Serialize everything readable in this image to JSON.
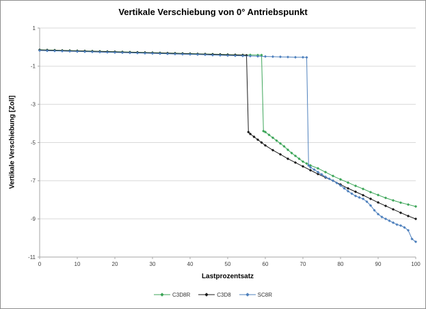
{
  "chart_data": {
    "type": "line",
    "title": "Vertikale Verschiebung von 0° Antriebspunkt",
    "xlabel": "Lastprozentsatz",
    "ylabel": "Vertikale Verschiebung [Zoll]",
    "xlim": [
      0,
      100
    ],
    "ylim": [
      -11,
      1
    ],
    "x_ticks": [
      0,
      10,
      20,
      30,
      40,
      50,
      60,
      70,
      80,
      90,
      100
    ],
    "y_ticks": [
      1,
      -1,
      -3,
      -5,
      -7,
      -9,
      -11
    ],
    "grid": "horizontal",
    "legend_position": "bottom",
    "colors": {
      "grid": "#d9d9d9",
      "axis": "#a6a6a6",
      "tick_label": "#404040",
      "frame_border": "#8c8c8c",
      "background": "#ffffff"
    },
    "series": [
      {
        "name": "C3D8R",
        "color": "#3ca558",
        "points": [
          [
            0,
            -0.14
          ],
          [
            2,
            -0.15
          ],
          [
            4,
            -0.16
          ],
          [
            6,
            -0.17
          ],
          [
            8,
            -0.18
          ],
          [
            10,
            -0.19
          ],
          [
            12,
            -0.2
          ],
          [
            14,
            -0.21
          ],
          [
            16,
            -0.22
          ],
          [
            18,
            -0.23
          ],
          [
            20,
            -0.24
          ],
          [
            22,
            -0.25
          ],
          [
            24,
            -0.26
          ],
          [
            26,
            -0.27
          ],
          [
            28,
            -0.28
          ],
          [
            30,
            -0.29
          ],
          [
            32,
            -0.3
          ],
          [
            34,
            -0.31
          ],
          [
            36,
            -0.32
          ],
          [
            38,
            -0.33
          ],
          [
            40,
            -0.34
          ],
          [
            42,
            -0.35
          ],
          [
            44,
            -0.36
          ],
          [
            46,
            -0.37
          ],
          [
            48,
            -0.38
          ],
          [
            50,
            -0.39
          ],
          [
            52,
            -0.4
          ],
          [
            54,
            -0.41
          ],
          [
            56,
            -0.41
          ],
          [
            58,
            -0.42
          ],
          [
            59,
            -0.42
          ],
          [
            59.5,
            -4.4
          ],
          [
            60,
            -4.45
          ],
          [
            61,
            -4.6
          ],
          [
            62,
            -4.75
          ],
          [
            63,
            -4.9
          ],
          [
            64,
            -5.05
          ],
          [
            65,
            -5.2
          ],
          [
            66,
            -5.38
          ],
          [
            67,
            -5.55
          ],
          [
            68,
            -5.7
          ],
          [
            69,
            -5.85
          ],
          [
            70,
            -6.0
          ],
          [
            71,
            -6.1
          ],
          [
            72,
            -6.2
          ],
          [
            74,
            -6.35
          ],
          [
            76,
            -6.55
          ],
          [
            78,
            -6.75
          ],
          [
            80,
            -6.93
          ],
          [
            82,
            -7.1
          ],
          [
            84,
            -7.27
          ],
          [
            86,
            -7.43
          ],
          [
            88,
            -7.6
          ],
          [
            90,
            -7.75
          ],
          [
            92,
            -7.9
          ],
          [
            94,
            -8.03
          ],
          [
            96,
            -8.15
          ],
          [
            98,
            -8.25
          ],
          [
            100,
            -8.35
          ]
        ]
      },
      {
        "name": "C3D8",
        "color": "#1a1a1a",
        "points": [
          [
            0,
            -0.15
          ],
          [
            2,
            -0.16
          ],
          [
            4,
            -0.17
          ],
          [
            6,
            -0.18
          ],
          [
            8,
            -0.19
          ],
          [
            10,
            -0.2
          ],
          [
            12,
            -0.21
          ],
          [
            14,
            -0.22
          ],
          [
            16,
            -0.23
          ],
          [
            18,
            -0.24
          ],
          [
            20,
            -0.25
          ],
          [
            22,
            -0.26
          ],
          [
            24,
            -0.27
          ],
          [
            26,
            -0.28
          ],
          [
            28,
            -0.29
          ],
          [
            30,
            -0.3
          ],
          [
            32,
            -0.31
          ],
          [
            34,
            -0.32
          ],
          [
            36,
            -0.33
          ],
          [
            38,
            -0.34
          ],
          [
            40,
            -0.35
          ],
          [
            42,
            -0.36
          ],
          [
            44,
            -0.37
          ],
          [
            46,
            -0.38
          ],
          [
            48,
            -0.39
          ],
          [
            50,
            -0.4
          ],
          [
            52,
            -0.41
          ],
          [
            54,
            -0.42
          ],
          [
            55,
            -0.43
          ],
          [
            55.5,
            -4.45
          ],
          [
            56,
            -4.55
          ],
          [
            57,
            -4.7
          ],
          [
            58,
            -4.85
          ],
          [
            59,
            -5.0
          ],
          [
            60,
            -5.15
          ],
          [
            62,
            -5.4
          ],
          [
            64,
            -5.62
          ],
          [
            66,
            -5.85
          ],
          [
            68,
            -6.05
          ],
          [
            70,
            -6.25
          ],
          [
            72,
            -6.45
          ],
          [
            74,
            -6.65
          ],
          [
            76,
            -6.83
          ],
          [
            78,
            -7.0
          ],
          [
            80,
            -7.2
          ],
          [
            82,
            -7.4
          ],
          [
            84,
            -7.58
          ],
          [
            86,
            -7.76
          ],
          [
            88,
            -7.95
          ],
          [
            90,
            -8.14
          ],
          [
            92,
            -8.32
          ],
          [
            94,
            -8.5
          ],
          [
            96,
            -8.68
          ],
          [
            98,
            -8.85
          ],
          [
            100,
            -9.0
          ]
        ]
      },
      {
        "name": "SC8R",
        "color": "#4f81bd",
        "points": [
          [
            0,
            -0.18
          ],
          [
            2,
            -0.19
          ],
          [
            4,
            -0.2
          ],
          [
            6,
            -0.21
          ],
          [
            8,
            -0.22
          ],
          [
            10,
            -0.23
          ],
          [
            12,
            -0.24
          ],
          [
            14,
            -0.25
          ],
          [
            16,
            -0.26
          ],
          [
            18,
            -0.27
          ],
          [
            20,
            -0.28
          ],
          [
            22,
            -0.29
          ],
          [
            24,
            -0.3
          ],
          [
            26,
            -0.31
          ],
          [
            28,
            -0.32
          ],
          [
            30,
            -0.33
          ],
          [
            32,
            -0.34
          ],
          [
            34,
            -0.35
          ],
          [
            36,
            -0.36
          ],
          [
            38,
            -0.37
          ],
          [
            40,
            -0.38
          ],
          [
            42,
            -0.39
          ],
          [
            44,
            -0.4
          ],
          [
            46,
            -0.42
          ],
          [
            48,
            -0.43
          ],
          [
            50,
            -0.44
          ],
          [
            52,
            -0.45
          ],
          [
            54,
            -0.46
          ],
          [
            56,
            -0.47
          ],
          [
            58,
            -0.48
          ],
          [
            60,
            -0.49
          ],
          [
            62,
            -0.5
          ],
          [
            64,
            -0.51
          ],
          [
            66,
            -0.52
          ],
          [
            68,
            -0.53
          ],
          [
            70,
            -0.53
          ],
          [
            71,
            -0.54
          ],
          [
            71.5,
            -6.2
          ],
          [
            72,
            -6.3
          ],
          [
            73,
            -6.42
          ],
          [
            74,
            -6.55
          ],
          [
            75,
            -6.67
          ],
          [
            76,
            -6.8
          ],
          [
            77,
            -6.9
          ],
          [
            78,
            -7.0
          ],
          [
            79,
            -7.12
          ],
          [
            80,
            -7.25
          ],
          [
            81,
            -7.4
          ],
          [
            82,
            -7.55
          ],
          [
            83,
            -7.68
          ],
          [
            84,
            -7.8
          ],
          [
            85,
            -7.88
          ],
          [
            86,
            -7.95
          ],
          [
            87,
            -8.1
          ],
          [
            88,
            -8.3
          ],
          [
            89,
            -8.55
          ],
          [
            90,
            -8.75
          ],
          [
            91,
            -8.9
          ],
          [
            92,
            -9.0
          ],
          [
            93,
            -9.1
          ],
          [
            94,
            -9.2
          ],
          [
            95,
            -9.3
          ],
          [
            96,
            -9.35
          ],
          [
            97,
            -9.45
          ],
          [
            98,
            -9.6
          ],
          [
            99,
            -10.05
          ],
          [
            100,
            -10.2
          ]
        ]
      }
    ]
  }
}
